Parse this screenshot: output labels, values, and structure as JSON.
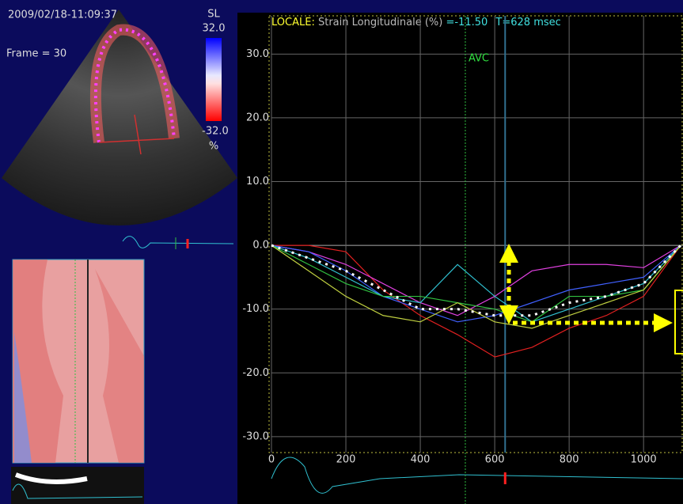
{
  "overlay": {
    "timestamp": "2009/02/18-11:09:37",
    "frame": "Frame = 30",
    "scale_name": "SL",
    "scale_max": "32.0",
    "scale_min": "-32.0",
    "scale_unit": "%"
  },
  "chart_data": {
    "type": "line",
    "title_prefix": "LOCALE:",
    "title": "Strain Longitudinale (%)",
    "readout": "=-11.50",
    "time_readout": "T=628 msec",
    "x": [
      0,
      100,
      200,
      300,
      400,
      500,
      600,
      700,
      800,
      900,
      1000,
      1100
    ],
    "series": [
      {
        "color": "#e02020",
        "values": [
          0,
          0,
          -1,
          -7,
          -11,
          -14,
          -17.5,
          -16,
          -13,
          -11,
          -8,
          0
        ]
      },
      {
        "color": "#e040e0",
        "values": [
          0,
          -1,
          -3,
          -6,
          -9,
          -11,
          -8,
          -4,
          -3,
          -3,
          -3.5,
          0
        ]
      },
      {
        "color": "#4060ff",
        "values": [
          0,
          -1,
          -4,
          -8,
          -10,
          -12,
          -11,
          -9,
          -7,
          -6,
          -5,
          0
        ]
      },
      {
        "color": "#30c0d0",
        "values": [
          0,
          -2,
          -5,
          -8,
          -9,
          -3,
          -8,
          -12,
          -10,
          -8,
          -6,
          0
        ]
      },
      {
        "color": "#30c040",
        "values": [
          0,
          -3,
          -6,
          -8,
          -8,
          -9,
          -10,
          -12,
          -8,
          -8,
          -7,
          0
        ]
      },
      {
        "color": "#c0d040",
        "values": [
          0,
          -4,
          -8,
          -11,
          -12,
          -9,
          -12,
          -13,
          -11,
          -9,
          -7,
          0
        ]
      },
      {
        "color": "#ffffff",
        "dashed": true,
        "values": [
          0,
          -2,
          -4,
          -7,
          -10,
          -10,
          -11,
          -11,
          -9,
          -8,
          -6,
          0
        ]
      }
    ],
    "xlim": [
      0,
      1106
    ],
    "xticks": [
      0,
      200,
      400,
      600,
      800,
      1000
    ],
    "ylim": [
      -32.5,
      36
    ],
    "yticks": [
      {
        "value": 30,
        "label": "30.0"
      },
      {
        "value": 20,
        "label": "20.0"
      },
      {
        "value": 10,
        "label": "10.0"
      },
      {
        "value": 0,
        "label": "0.0"
      },
      {
        "value": -10,
        "label": "-10.0"
      },
      {
        "value": -20,
        "label": "-20.0"
      },
      {
        "value": -30,
        "label": "-30.0"
      }
    ],
    "grid": true,
    "markers": [
      {
        "label": "AVC",
        "x": 521
      }
    ],
    "cursor_x": 628
  }
}
